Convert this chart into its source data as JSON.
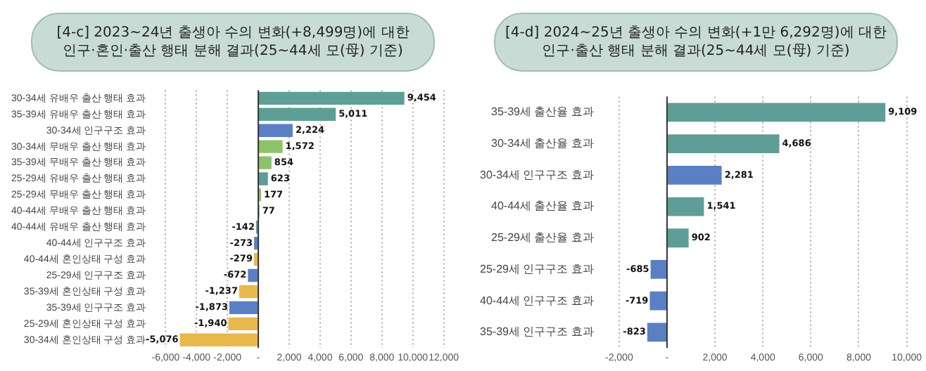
{
  "chart_data": [
    {
      "type": "bar",
      "orientation": "horizontal",
      "title": "[4-c] 2023~24년 출생아 수의 변화(+8,499명)에 대한\n인구·혼인·출산 행태 분해 결과(25~44세 모(母) 기준)",
      "categories": [
        "30-34세 유배우 출산 행태 효과",
        "35-39세 유배우 출산 행태 효과",
        "30-34세 인구구조 효과",
        "30-34세 무배우 출산 행태 효과",
        "35-39세 무배우 출산 행태 효과",
        "25-29세 유배우 출산 행태 효과",
        "25-29세 무배우 출산 행태 효과",
        "40-44세 무배우 출산 행태 효과",
        "40-44세 유배우 출산 행태 효과",
        "40-44세 인구구조 효과",
        "40-44세 혼인상태 구성 효과",
        "25-29세 인구구조 효과",
        "35-39세 혼인상태 구성 효과",
        "35-39세 인구구조 효과",
        "25-29세 혼인상태 구성 효과",
        "30-34세 혼인상태 구성 효과"
      ],
      "values": [
        9454,
        5011,
        2224,
        1572,
        854,
        623,
        177,
        77,
        -142,
        -273,
        -279,
        -672,
        -1237,
        -1873,
        -1940,
        -5076
      ],
      "value_labels": [
        "9,454",
        "5,011",
        "2,224",
        "1,572",
        "854",
        "623",
        "177",
        "77",
        "-142",
        "-273",
        "-279",
        "-672",
        "-1,237",
        "-1,873",
        "-1,940",
        "-5,076"
      ],
      "colors": [
        "#5f9e96",
        "#5f9e96",
        "#5b7fc4",
        "#8cc36a",
        "#8cc36a",
        "#5f9e96",
        "#8cc36a",
        "#8cc36a",
        "#5f9e96",
        "#5b7fc4",
        "#e8b84a",
        "#5b7fc4",
        "#e8b84a",
        "#5b7fc4",
        "#e8b84a",
        "#e8b84a"
      ],
      "xlim": [
        -6000,
        12000
      ],
      "xticks": [
        {
          "value": -6000,
          "label": "-6,000"
        },
        {
          "value": -4000,
          "label": "-4,000"
        },
        {
          "value": -2000,
          "label": "-2,000"
        },
        {
          "value": 0,
          "label": "-"
        },
        {
          "value": 2000,
          "label": "2,000"
        },
        {
          "value": 4000,
          "label": "4,000"
        },
        {
          "value": 6000,
          "label": "6,000"
        },
        {
          "value": 8000,
          "label": "8,000"
        },
        {
          "value": 10000,
          "label": "10,000"
        },
        {
          "value": 12000,
          "label": "12,000"
        }
      ],
      "ref_lines": [
        {
          "axis": "x",
          "value": 0,
          "color": "#333333"
        }
      ],
      "grid": "x"
    },
    {
      "type": "bar",
      "orientation": "horizontal",
      "title": "[4-d] 2024~25년 출생아 수의 변화(+1만 6,292명)에 대한\n인구·출산 행태 분해 결과(25~44세 모(母) 기준)",
      "categories": [
        "35-39세 출산율 효과",
        "30-34세 출산율 효과",
        "30-34세 인구구조 효과",
        "40-44세 출산율 효과",
        "25-29세 출산율 효과",
        "25-29세 인구구조 효과",
        "40-44세 인구구조 효과",
        "35-39세 인구구조 효과"
      ],
      "values": [
        9109,
        4686,
        2281,
        1541,
        902,
        -685,
        -719,
        -823
      ],
      "value_labels": [
        "9,109",
        "4,686",
        "2,281",
        "1,541",
        "902",
        "-685",
        "-719",
        "-823"
      ],
      "colors": [
        "#5f9e96",
        "#5f9e96",
        "#5b7fc4",
        "#5f9e96",
        "#5f9e96",
        "#5b7fc4",
        "#5b7fc4",
        "#5b7fc4"
      ],
      "xlim": [
        -2000,
        10000
      ],
      "xticks": [
        {
          "value": -2000,
          "label": "-2,000"
        },
        {
          "value": 0,
          "label": "-"
        },
        {
          "value": 2000,
          "label": "2,000"
        },
        {
          "value": 4000,
          "label": "4,000"
        },
        {
          "value": 6000,
          "label": "6,000"
        },
        {
          "value": 8000,
          "label": "8,000"
        },
        {
          "value": 10000,
          "label": "10,000"
        }
      ],
      "ref_lines": [
        {
          "axis": "x",
          "value": 0,
          "color": "#333333"
        }
      ],
      "grid": "x"
    }
  ]
}
